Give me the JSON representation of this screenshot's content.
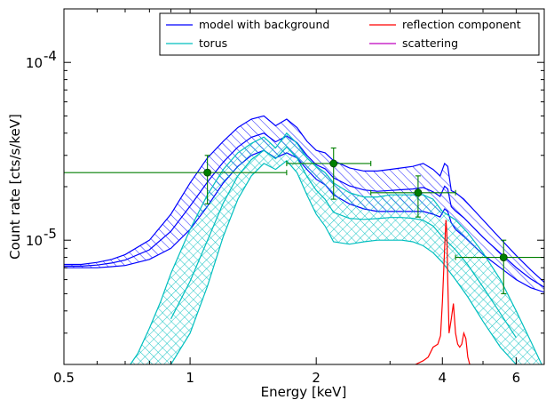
{
  "chart_data": {
    "type": "line",
    "title": "",
    "xlabel": "Energy [keV]",
    "ylabel": "Count rate [cts/s/keV]",
    "xscale": "log",
    "yscale": "log",
    "xlim": [
      0.5,
      7.0
    ],
    "ylim": [
      2e-06,
      0.0002
    ],
    "x_ticks": [
      {
        "value": 0.5,
        "label": "0.5"
      },
      {
        "value": 1,
        "label": "1"
      },
      {
        "value": 2,
        "label": "2"
      },
      {
        "value": 4,
        "label": "4"
      },
      {
        "value": 6,
        "label": "6"
      }
    ],
    "y_ticks": [
      {
        "value": 1e-05,
        "base": "10",
        "exp": "-5"
      },
      {
        "value": 0.0001,
        "base": "10",
        "exp": "-4"
      }
    ],
    "grid": false,
    "legend": {
      "placement": "top-right",
      "columns": 2,
      "entries": [
        {
          "name": "model with background",
          "color": "#0000ff"
        },
        {
          "name": "torus",
          "color": "#00bfbf"
        },
        {
          "name": "reflection component",
          "color": "#ff0000"
        },
        {
          "name": "scattering",
          "color": "#bf00bf"
        }
      ]
    },
    "series": [
      {
        "name": "model with background",
        "color": "#0000ff",
        "hatch": "diagonal",
        "x": [
          0.5,
          0.55,
          0.6,
          0.65,
          0.7,
          0.8,
          0.9,
          1.0,
          1.1,
          1.2,
          1.3,
          1.4,
          1.5,
          1.6,
          1.7,
          1.8,
          1.9,
          2.0,
          2.1,
          2.2,
          2.4,
          2.6,
          2.8,
          3.0,
          3.2,
          3.4,
          3.6,
          3.8,
          3.95,
          4.05,
          4.12,
          4.2,
          4.3,
          4.5,
          5.0,
          5.5,
          6.0,
          6.5,
          7.0
        ],
        "upper": [
          7.3e-06,
          7.3e-06,
          7.5e-06,
          7.8e-06,
          8.3e-06,
          1e-05,
          1.4e-05,
          2.1e-05,
          2.9e-05,
          3.6e-05,
          4.3e-05,
          4.8e-05,
          5e-05,
          4.4e-05,
          4.8e-05,
          4.3e-05,
          3.6e-05,
          3.2e-05,
          3.1e-05,
          2.8e-05,
          2.55e-05,
          2.45e-05,
          2.45e-05,
          2.5e-05,
          2.55e-05,
          2.6e-05,
          2.7e-05,
          2.5e-05,
          2.3e-05,
          2.7e-05,
          2.6e-05,
          1.9e-05,
          1.85e-05,
          1.7e-05,
          1.3e-05,
          1.02e-05,
          8.2e-06,
          6.8e-06,
          5.8e-06
        ],
        "lower": [
          7e-06,
          7e-06,
          7e-06,
          7.1e-06,
          7.2e-06,
          7.8e-06,
          9e-06,
          1.15e-05,
          1.55e-05,
          2.1e-05,
          2.6e-05,
          3e-05,
          3.2e-05,
          2.9e-05,
          3.1e-05,
          2.9e-05,
          2.5e-05,
          2.2e-05,
          2.05e-05,
          1.8e-05,
          1.6e-05,
          1.5e-05,
          1.45e-05,
          1.45e-05,
          1.45e-05,
          1.45e-05,
          1.45e-05,
          1.4e-05,
          1.35e-05,
          1.5e-05,
          1.45e-05,
          1.25e-05,
          1.15e-05,
          1.05e-05,
          8.3e-06,
          7e-06,
          6e-06,
          5.4e-06,
          5.1e-06
        ]
      },
      {
        "name": "torus",
        "color": "#00bfbf",
        "hatch": "cross",
        "x": [
          0.72,
          0.75,
          0.8,
          0.85,
          0.9,
          1.0,
          1.1,
          1.2,
          1.3,
          1.4,
          1.5,
          1.6,
          1.7,
          1.8,
          1.9,
          2.0,
          2.1,
          2.2,
          2.4,
          2.6,
          2.8,
          3.0,
          3.2,
          3.4,
          3.6,
          3.8,
          4.0,
          4.3,
          4.6,
          5.0,
          5.5,
          6.0,
          6.5,
          6.9
        ],
        "upper": [
          2e-06,
          2.3e-06,
          3.2e-06,
          4.5e-06,
          6.5e-06,
          1.15e-05,
          1.8e-05,
          2.5e-05,
          3.1e-05,
          3.5e-05,
          3.8e-05,
          3.3e-05,
          4e-05,
          3.5e-05,
          2.9e-05,
          2.6e-05,
          2.4e-05,
          2.1e-05,
          1.85e-05,
          1.75e-05,
          1.75e-05,
          1.8e-05,
          1.8e-05,
          1.8e-05,
          1.8e-05,
          1.7e-05,
          1.45e-05,
          1.3e-05,
          1.1e-05,
          8.5e-06,
          6e-06,
          4e-06,
          2.7e-06,
          2e-06
        ],
        "lower": [
          null,
          null,
          null,
          null,
          2e-06,
          3e-06,
          5.5e-06,
          1.05e-05,
          1.7e-05,
          2.3e-05,
          2.7e-05,
          2.5e-05,
          2.8e-05,
          2.4e-05,
          1.8e-05,
          1.4e-05,
          1.2e-05,
          9.8e-06,
          9.5e-06,
          9.8e-06,
          1e-05,
          1e-05,
          1e-05,
          9.8e-06,
          9.3e-06,
          8.5e-06,
          7.5e-06,
          6e-06,
          4.8e-06,
          3.5e-06,
          2.5e-06,
          2e-06,
          null,
          null
        ]
      },
      {
        "name": "reflection component",
        "color": "#ff0000",
        "x": [
          3.45,
          3.6,
          3.7,
          3.8,
          3.9,
          3.96,
          4.0,
          4.05,
          4.08,
          4.1,
          4.12,
          4.15,
          4.2,
          4.25,
          4.3,
          4.35,
          4.4,
          4.45,
          4.5,
          4.55,
          4.6,
          4.65
        ],
        "y": [
          2e-06,
          2.1e-06,
          2.2e-06,
          2.5e-06,
          2.6e-06,
          2.9e-06,
          4.5e-06,
          9e-06,
          1.3e-05,
          1.1e-05,
          6e-06,
          3e-06,
          3.6e-06,
          4.4e-06,
          3e-06,
          2.6e-06,
          2.5e-06,
          2.6e-06,
          3e-06,
          2.8e-06,
          2.2e-06,
          2e-06
        ]
      },
      {
        "name": "data",
        "color": "#007f00",
        "type": "errorbar",
        "points": [
          {
            "x": 1.1,
            "y": 2.4e-05,
            "xlo": 0.5,
            "xhi": 1.7,
            "ylo": 1.6e-05,
            "yhi": 3e-05
          },
          {
            "x": 2.2,
            "y": 2.7e-05,
            "xlo": 1.7,
            "xhi": 2.7,
            "ylo": 1.7e-05,
            "yhi": 3.3e-05
          },
          {
            "x": 3.5,
            "y": 1.85e-05,
            "xlo": 2.7,
            "xhi": 4.3,
            "ylo": 1.35e-05,
            "yhi": 2.3e-05
          },
          {
            "x": 5.6,
            "y": 8e-06,
            "xlo": 4.3,
            "xhi": 7.0,
            "ylo": 5e-06,
            "yhi": 1e-05
          }
        ]
      }
    ]
  }
}
